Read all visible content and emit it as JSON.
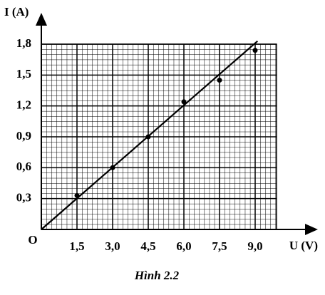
{
  "chart_data": {
    "type": "scatter",
    "y_label": "I (A)",
    "x_label": "U (V)",
    "origin_label": "O",
    "caption": "Hình 2.2",
    "x": [
      1.5,
      3.0,
      4.5,
      6.0,
      7.5,
      9.0
    ],
    "values": [
      0.33,
      0.6,
      0.9,
      1.24,
      1.45,
      1.74
    ],
    "fit_line": {
      "x": [
        0,
        9.1
      ],
      "values": [
        0,
        1.83
      ]
    },
    "color": "#000000",
    "xlim": [
      0,
      9.9
    ],
    "ylim": [
      0,
      1.8
    ],
    "xticks": [
      {
        "value": 1.5,
        "label": "1,5"
      },
      {
        "value": 3.0,
        "label": "3,0"
      },
      {
        "value": 4.5,
        "label": "4,5"
      },
      {
        "value": 6.0,
        "label": "6,0"
      },
      {
        "value": 7.5,
        "label": "7,5"
      },
      {
        "value": 9.0,
        "label": "9,0"
      }
    ],
    "yticks": [
      {
        "value": 0.3,
        "label": "0,3"
      },
      {
        "value": 0.6,
        "label": "0,6"
      },
      {
        "value": 0.9,
        "label": "0,9"
      },
      {
        "value": 1.2,
        "label": "1,2"
      },
      {
        "value": 1.5,
        "label": "1,5"
      },
      {
        "value": 1.8,
        "label": "1,8"
      }
    ],
    "grid": true
  }
}
